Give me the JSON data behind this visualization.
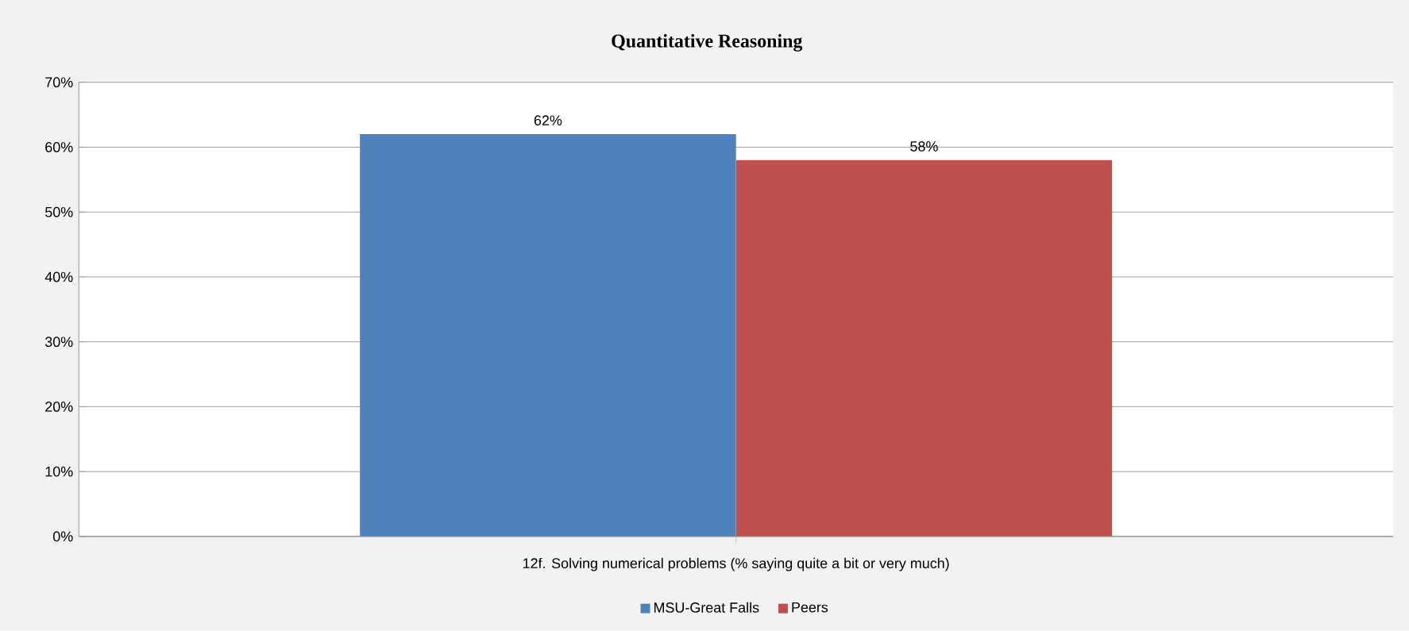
{
  "chart_data": {
    "type": "bar",
    "title": "Quantitative Reasoning",
    "categories": [
      "12f.  Solving numerical problems  (% saying quite a bit or very much)"
    ],
    "series": [
      {
        "name": "MSU-Great Falls",
        "color": "#4f81bd",
        "values": [
          62
        ],
        "value_labels": [
          "62%"
        ]
      },
      {
        "name": "Peers",
        "color": "#c0504d",
        "values": [
          58
        ],
        "value_labels": [
          "58%"
        ]
      }
    ],
    "ylim": [
      0,
      70
    ],
    "yticks": [
      {
        "value": 0,
        "label": "0%"
      },
      {
        "value": 10,
        "label": "10%"
      },
      {
        "value": 20,
        "label": "20%"
      },
      {
        "value": 30,
        "label": "30%"
      },
      {
        "value": 40,
        "label": "40%"
      },
      {
        "value": 50,
        "label": "50%"
      },
      {
        "value": 60,
        "label": "60%"
      },
      {
        "value": 70,
        "label": "70%"
      }
    ],
    "grid": "y",
    "legend": "bottom"
  }
}
